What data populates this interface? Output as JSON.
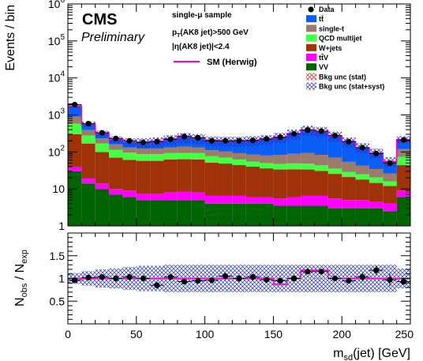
{
  "chart_data": [
    {
      "panel": "main",
      "type": "stacked-bar",
      "log_y": true,
      "ylim": [
        1,
        1000000
      ],
      "xlim": [
        0,
        250
      ],
      "ylabel": "Events / bin",
      "y_tick_labels": [
        {
          "base": "1",
          "exp": ""
        },
        {
          "base": "10",
          "exp": ""
        },
        {
          "base": "10",
          "exp": "2"
        },
        {
          "base": "10",
          "exp": "3"
        },
        {
          "base": "10",
          "exp": "4"
        },
        {
          "base": "10",
          "exp": "5"
        },
        {
          "base": "10",
          "exp": "6"
        }
      ],
      "text": {
        "experiment": "CMS",
        "status": "Preliminary",
        "sample": "single-μ sample",
        "cut_pt": "p_T(AK8 jet)>500 GeV",
        "cut_eta": "|η(AK8 jet)|<2.4"
      },
      "bin_width": 10,
      "bin_centers": [
        5,
        15,
        25,
        35,
        45,
        55,
        65,
        75,
        85,
        95,
        105,
        115,
        125,
        135,
        145,
        155,
        165,
        175,
        185,
        195,
        205,
        215,
        225,
        235,
        245
      ],
      "series": [
        {
          "name": "VV",
          "color": "#006400",
          "values": [
            30,
            14,
            10,
            7,
            6,
            5,
            5,
            5,
            5,
            5,
            4,
            4,
            4,
            4,
            4,
            3.5,
            3.5,
            3.5,
            3.5,
            3,
            3,
            3,
            3,
            2.5,
            6
          ]
        },
        {
          "name": "tt̄V",
          "color": "#ff00ff",
          "values": [
            10,
            5,
            4,
            3,
            3,
            2.5,
            2.5,
            3,
            3.5,
            3,
            2.5,
            2.5,
            2.5,
            2,
            2,
            2,
            2.5,
            3,
            3,
            2.5,
            2,
            2,
            1.5,
            1.5,
            3
          ]
        },
        {
          "name": "W+jets",
          "color": "#a0320a",
          "values": [
            260,
            150,
            85,
            60,
            52,
            50,
            50,
            55,
            55,
            55,
            45,
            42,
            38,
            34,
            30,
            28,
            28,
            27,
            24,
            20,
            16,
            13,
            10,
            8,
            35
          ]
        },
        {
          "name": "QCD multijet",
          "color": "#44ff44",
          "values": [
            280,
            110,
            70,
            45,
            35,
            30,
            30,
            30,
            30,
            30,
            25,
            22,
            18,
            15,
            14,
            14,
            15,
            15,
            13,
            10,
            8,
            7,
            6,
            4,
            30
          ]
        },
        {
          "name": "single-t",
          "color": "#9c7b6b",
          "values": [
            320,
            110,
            65,
            45,
            35,
            35,
            35,
            40,
            45,
            40,
            35,
            32,
            30,
            30,
            30,
            35,
            40,
            45,
            40,
            35,
            25,
            18,
            14,
            10,
            45
          ]
        },
        {
          "name": "tt̄",
          "color": "#0b5ef5",
          "values": [
            800,
            180,
            80,
            55,
            55,
            60,
            70,
            85,
            110,
            100,
            90,
            95,
            105,
            120,
            140,
            170,
            220,
            300,
            280,
            200,
            135,
            90,
            60,
            30,
            100
          ]
        }
      ],
      "data": {
        "name": "Data",
        "values": [
          1900,
          580,
          330,
          230,
          200,
          180,
          190,
          220,
          260,
          240,
          200,
          200,
          200,
          205,
          225,
          250,
          310,
          390,
          365,
          275,
          190,
          130,
          90,
          50,
          210
        ]
      },
      "sm_herwig": {
        "name": "SM (Herwig)",
        "color": "#ff00cc",
        "values": [
          1750,
          560,
          320,
          225,
          195,
          185,
          195,
          225,
          265,
          240,
          205,
          200,
          200,
          205,
          225,
          250,
          310,
          385,
          360,
          270,
          190,
          130,
          95,
          55,
          215
        ]
      },
      "legend": [
        {
          "label": "Data",
          "style": "marker"
        },
        {
          "label": "tt̄",
          "style": "fill",
          "color": "#0b5ef5"
        },
        {
          "label": "single-t",
          "style": "fill",
          "color": "#9c7b6b"
        },
        {
          "label": "QCD multijet",
          "style": "fill",
          "color": "#44ff44"
        },
        {
          "label": "W+jets",
          "style": "fill",
          "color": "#a0320a"
        },
        {
          "label": "tt̄V",
          "style": "fill",
          "color": "#ff00ff"
        },
        {
          "label": "VV",
          "style": "fill",
          "color": "#006400"
        },
        {
          "label": "Bkg unc (stat)",
          "style": "hatch-red"
        },
        {
          "label": "Bkg unc (stat+syst)",
          "style": "hatch-blue"
        }
      ],
      "legend_placement": "top-right"
    },
    {
      "panel": "ratio",
      "type": "ratio",
      "xlim": [
        0,
        250
      ],
      "ylim": [
        0,
        2
      ],
      "xlabel": "m_sd(jet) [GeV]",
      "ylabel": "N_obs / N_exp",
      "x_ticks": [
        0,
        50,
        100,
        150,
        200,
        250
      ],
      "y_ticks": [
        0.5,
        1,
        1.5
      ],
      "bin_centers": [
        5,
        15,
        25,
        35,
        45,
        55,
        65,
        75,
        85,
        95,
        105,
        115,
        125,
        135,
        145,
        155,
        165,
        175,
        185,
        195,
        205,
        215,
        225,
        235,
        245
      ],
      "ratio": [
        0.96,
        1.02,
        1.03,
        1.0,
        1.03,
        1.0,
        0.85,
        1.03,
        0.93,
        0.95,
        0.96,
        1.05,
        1.0,
        1.03,
        0.97,
        0.95,
        1.0,
        1.15,
        1.15,
        1.0,
        0.95,
        1.03,
        1.18,
        0.97,
        0.93
      ],
      "ratio_err": [
        0.05,
        0.05,
        0.06,
        0.07,
        0.07,
        0.07,
        0.07,
        0.07,
        0.06,
        0.07,
        0.07,
        0.07,
        0.07,
        0.07,
        0.07,
        0.06,
        0.06,
        0.05,
        0.05,
        0.06,
        0.07,
        0.09,
        0.1,
        0.14,
        0.07
      ],
      "sm_ratio": [
        1.0,
        1.0,
        1.0,
        1.0,
        1.0,
        1.0,
        1.0,
        1.0,
        1.0,
        1.0,
        1.0,
        1.0,
        1.0,
        1.0,
        1.0,
        0.87,
        1.0,
        1.18,
        1.18,
        1.0,
        1.0,
        1.0,
        1.0,
        1.0,
        1.0
      ],
      "band_half_width": [
        0.12,
        0.16,
        0.2,
        0.22,
        0.25,
        0.28,
        0.28,
        0.3,
        0.3,
        0.3,
        0.3,
        0.3,
        0.3,
        0.3,
        0.3,
        0.3,
        0.3,
        0.3,
        0.3,
        0.3,
        0.3,
        0.3,
        0.3,
        0.3,
        0.22
      ]
    }
  ]
}
